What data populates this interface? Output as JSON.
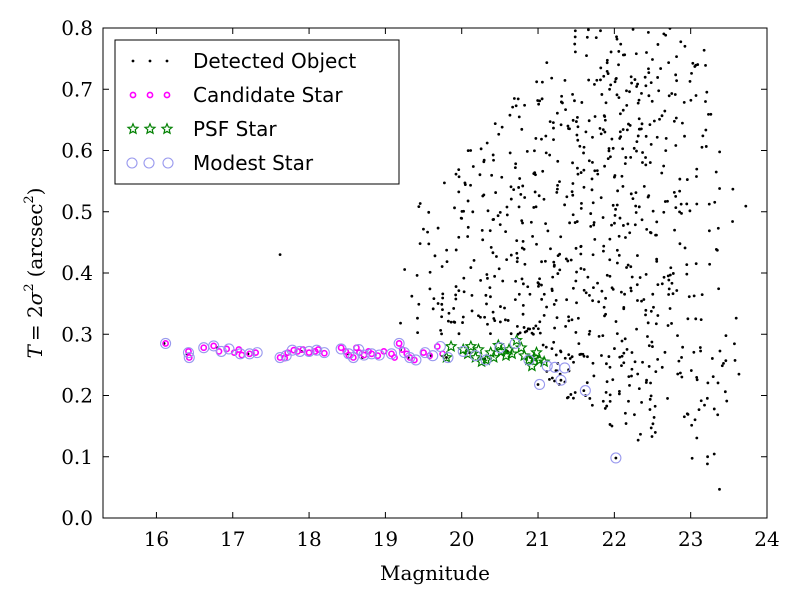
{
  "chart_data": {
    "type": "scatter",
    "xlabel": "Magnitude",
    "ylabel": {
      "prefix": "T",
      "eq": "= 2",
      "sigma": "σ",
      "sup2": "2",
      "unit_open": "(arcsec",
      "unit_sup": "2",
      "unit_close": ")"
    },
    "xlim": [
      15.3,
      24.0
    ],
    "ylim": [
      0.0,
      0.8
    ],
    "x_ticks": [
      16,
      17,
      18,
      19,
      20,
      21,
      22,
      23,
      24
    ],
    "x_tick_labels": [
      "16",
      "17",
      "18",
      "19",
      "20",
      "21",
      "22",
      "23",
      "24"
    ],
    "y_ticks": [
      0.0,
      0.1,
      0.2,
      0.3,
      0.4,
      0.5,
      0.6,
      0.7,
      0.8
    ],
    "y_tick_labels": [
      "0.0",
      "0.1",
      "0.2",
      "0.3",
      "0.4",
      "0.5",
      "0.6",
      "0.7",
      "0.8"
    ],
    "grid": false,
    "legend_position": "top-left",
    "series": [
      {
        "name": "Detected Object",
        "marker": "dot",
        "color": "#000000",
        "points": [
          [
            16.1,
            0.285
          ],
          [
            16.4,
            0.268
          ],
          [
            16.8,
            0.278
          ],
          [
            17.2,
            0.268
          ],
          [
            17.7,
            0.265
          ],
          [
            17.9,
            0.272
          ],
          [
            18.5,
            0.268
          ],
          [
            18.7,
            0.262
          ],
          [
            19.2,
            0.275
          ],
          [
            19.3,
            0.262
          ],
          [
            19.6,
            0.265
          ],
          [
            19.8,
            0.262
          ],
          [
            20.1,
            0.27
          ],
          [
            20.3,
            0.26
          ],
          [
            20.6,
            0.272
          ],
          [
            20.9,
            0.262
          ],
          [
            21.0,
            0.218
          ],
          [
            21.3,
            0.225
          ],
          [
            21.6,
            0.208
          ],
          [
            22.02,
            0.098
          ],
          [
            17.62,
            0.43
          ]
        ],
        "field": {
          "seed": 7,
          "n": 780,
          "x_min": 19.1,
          "x_peak": 22.3,
          "x_max": 23.8,
          "y_upper_at_19": 0.45,
          "y_upper_slope": 0.14,
          "y_lower_at_21": 0.22,
          "y_lower_at_24": 0.0,
          "y_cap": 0.8
        }
      },
      {
        "name": "Candidate Star",
        "marker": "circle-small",
        "color": "#ff00ff",
        "points": [
          [
            16.12,
            0.285
          ],
          [
            16.42,
            0.272
          ],
          [
            16.43,
            0.262
          ],
          [
            16.62,
            0.278
          ],
          [
            16.75,
            0.281
          ],
          [
            16.82,
            0.272
          ],
          [
            16.92,
            0.276
          ],
          [
            17.02,
            0.27
          ],
          [
            17.08,
            0.275
          ],
          [
            17.12,
            0.266
          ],
          [
            17.22,
            0.268
          ],
          [
            17.3,
            0.27
          ],
          [
            17.62,
            0.262
          ],
          [
            17.68,
            0.261
          ],
          [
            17.72,
            0.27
          ],
          [
            17.8,
            0.274
          ],
          [
            17.85,
            0.272
          ],
          [
            17.92,
            0.275
          ],
          [
            18.0,
            0.27
          ],
          [
            18.08,
            0.272
          ],
          [
            18.12,
            0.275
          ],
          [
            18.2,
            0.269
          ],
          [
            18.42,
            0.278
          ],
          [
            18.48,
            0.272
          ],
          [
            18.52,
            0.266
          ],
          [
            18.58,
            0.262
          ],
          [
            18.62,
            0.278
          ],
          [
            18.66,
            0.27
          ],
          [
            18.72,
            0.266
          ],
          [
            18.78,
            0.272
          ],
          [
            18.82,
            0.268
          ],
          [
            18.9,
            0.265
          ],
          [
            18.98,
            0.272
          ],
          [
            19.08,
            0.268
          ],
          [
            19.12,
            0.262
          ],
          [
            19.18,
            0.285
          ],
          [
            19.22,
            0.275
          ],
          [
            19.28,
            0.268
          ],
          [
            19.32,
            0.262
          ],
          [
            19.38,
            0.258
          ],
          [
            19.5,
            0.27
          ],
          [
            19.58,
            0.265
          ],
          [
            19.68,
            0.28
          ],
          [
            19.75,
            0.268
          ]
        ]
      },
      {
        "name": "PSF Star",
        "marker": "star",
        "color": "#008000",
        "points": [
          [
            19.8,
            0.262
          ],
          [
            19.86,
            0.28
          ],
          [
            20.02,
            0.275
          ],
          [
            20.08,
            0.268
          ],
          [
            20.12,
            0.28
          ],
          [
            20.18,
            0.262
          ],
          [
            20.22,
            0.275
          ],
          [
            20.26,
            0.255
          ],
          [
            20.32,
            0.258
          ],
          [
            20.38,
            0.27
          ],
          [
            20.42,
            0.262
          ],
          [
            20.48,
            0.282
          ],
          [
            20.52,
            0.272
          ],
          [
            20.58,
            0.265
          ],
          [
            20.62,
            0.275
          ],
          [
            20.66,
            0.268
          ],
          [
            20.72,
            0.29
          ],
          [
            20.78,
            0.278
          ],
          [
            20.82,
            0.265
          ],
          [
            20.88,
            0.258
          ],
          [
            20.92,
            0.248
          ],
          [
            20.98,
            0.27
          ],
          [
            21.02,
            0.258
          ],
          [
            21.08,
            0.255
          ],
          [
            20.95,
            0.262
          ]
        ]
      },
      {
        "name": "Modest Star",
        "marker": "circle-large",
        "color": "#9999ee",
        "points": [
          [
            16.12,
            0.285
          ],
          [
            16.42,
            0.27
          ],
          [
            16.43,
            0.262
          ],
          [
            16.62,
            0.278
          ],
          [
            16.75,
            0.281
          ],
          [
            16.85,
            0.272
          ],
          [
            16.95,
            0.276
          ],
          [
            17.1,
            0.268
          ],
          [
            17.22,
            0.268
          ],
          [
            17.32,
            0.27
          ],
          [
            17.62,
            0.262
          ],
          [
            17.7,
            0.265
          ],
          [
            17.78,
            0.274
          ],
          [
            17.88,
            0.272
          ],
          [
            18.0,
            0.272
          ],
          [
            18.1,
            0.274
          ],
          [
            18.2,
            0.27
          ],
          [
            18.42,
            0.276
          ],
          [
            18.52,
            0.268
          ],
          [
            18.58,
            0.262
          ],
          [
            18.65,
            0.275
          ],
          [
            18.72,
            0.266
          ],
          [
            18.82,
            0.268
          ],
          [
            18.92,
            0.266
          ],
          [
            19.08,
            0.268
          ],
          [
            19.18,
            0.285
          ],
          [
            19.25,
            0.27
          ],
          [
            19.32,
            0.262
          ],
          [
            19.4,
            0.258
          ],
          [
            19.52,
            0.27
          ],
          [
            19.62,
            0.265
          ],
          [
            19.72,
            0.28
          ],
          [
            19.82,
            0.262
          ],
          [
            20.02,
            0.272
          ],
          [
            20.18,
            0.265
          ],
          [
            20.32,
            0.258
          ],
          [
            20.5,
            0.278
          ],
          [
            20.7,
            0.285
          ],
          [
            20.88,
            0.258
          ],
          [
            21.02,
            0.218
          ],
          [
            21.12,
            0.248
          ],
          [
            21.22,
            0.246
          ],
          [
            21.3,
            0.225
          ],
          [
            21.35,
            0.245
          ],
          [
            21.62,
            0.208
          ],
          [
            22.02,
            0.098
          ]
        ]
      }
    ]
  }
}
